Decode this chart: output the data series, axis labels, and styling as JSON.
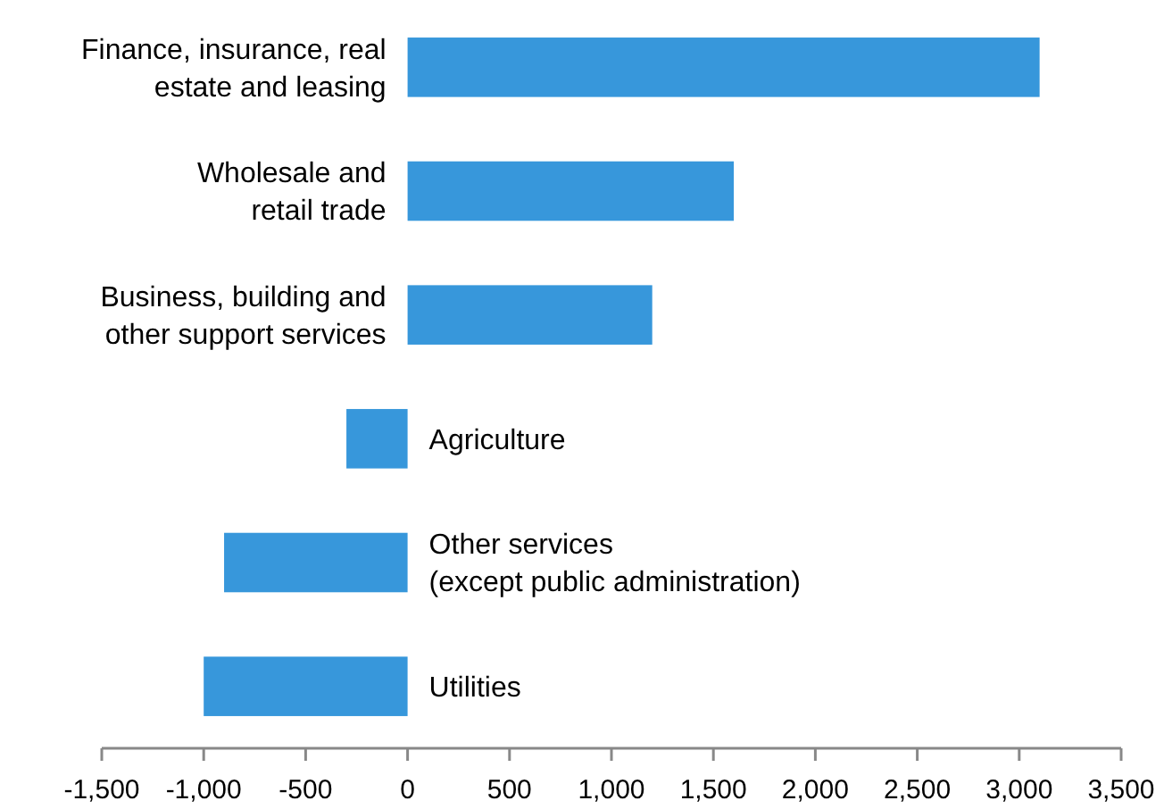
{
  "chart_data": {
    "type": "bar",
    "orientation": "horizontal",
    "categories": [
      "Finance, insurance, real\nestate and leasing",
      "Wholesale and\nretail trade",
      "Business, building and\nother support services",
      "Agriculture",
      "Other services\n(except public administration)",
      "Utilities"
    ],
    "values": [
      3100,
      1600,
      1200,
      -300,
      -900,
      -1000
    ],
    "color": "#3797db",
    "xlim": [
      -1500,
      3500
    ],
    "xticks": [
      {
        "value": -1500,
        "label": "-1,500"
      },
      {
        "value": -1000,
        "label": "-1,000"
      },
      -500,
      0,
      500,
      {
        "value": 1000,
        "label": "1,000"
      },
      {
        "value": 1500,
        "label": "1,500"
      },
      {
        "value": 2000,
        "label": "2,000"
      },
      {
        "value": 2500,
        "label": "2,500"
      },
      {
        "value": 3000,
        "label": "3,000"
      },
      {
        "value": 3500,
        "label": "3,500"
      }
    ],
    "grid": false
  }
}
